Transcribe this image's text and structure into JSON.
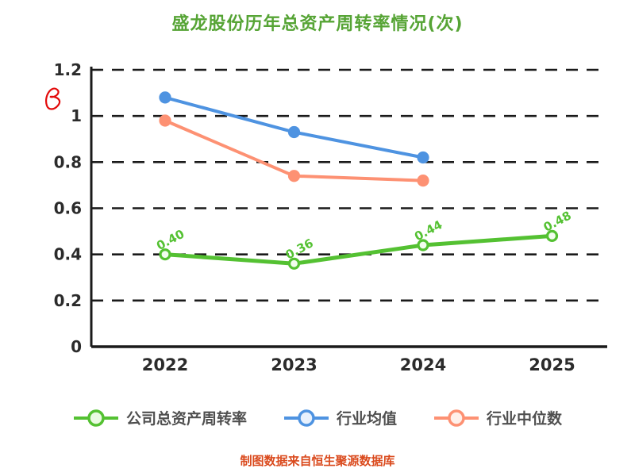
{
  "title": "盛龙股份历年总资产周转率情况(次)",
  "footer": "制图数据来自恒生聚源数据库",
  "colors": {
    "title": "#56a435",
    "footer": "#da4a1d",
    "axis": "#1a1a1a",
    "grid": "#1a1a1a",
    "tick_label": "#2b2b2b"
  },
  "chart_data": {
    "type": "line",
    "categories": [
      "2022",
      "2023",
      "2024",
      "2025"
    ],
    "series": [
      {
        "name": "公司总资产周转率",
        "color": "#54c132",
        "values": [
          0.4,
          0.36,
          0.44,
          0.48
        ],
        "labels": [
          "0.40",
          "0.36",
          "0.44",
          "0.48"
        ]
      },
      {
        "name": "行业均值",
        "color": "#4e93e1",
        "values": [
          1.08,
          0.93,
          0.82,
          null
        ],
        "labels": null
      },
      {
        "name": "行业中位数",
        "color": "#fd9173",
        "values": [
          0.98,
          0.74,
          0.72,
          null
        ],
        "labels": null
      }
    ],
    "ylim": [
      0,
      1.2
    ],
    "yticks": [
      0,
      0.2,
      0.4,
      0.6,
      0.8,
      1,
      1.2
    ],
    "ytick_labels": [
      "0",
      "0.2",
      "0.4",
      "0.6",
      "0.8",
      "1",
      "1.2"
    ],
    "xlabel": "",
    "ylabel": "",
    "grid": "dashed horizontal",
    "legend_position": "bottom"
  }
}
